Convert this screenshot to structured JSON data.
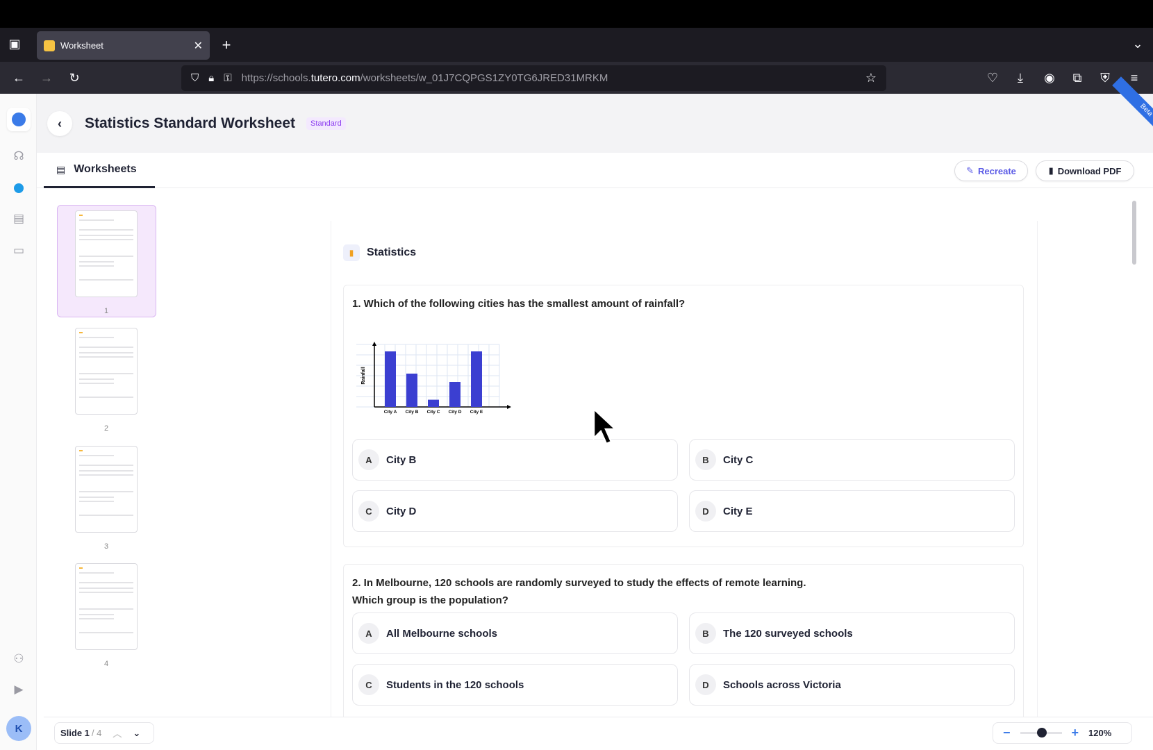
{
  "browser": {
    "tab_title": "Worksheet",
    "url_prefix": "https://schools.",
    "url_domain": "tutero.com",
    "url_path": "/worksheets/w_01J7CQPGS1ZY0TG6JRED31MRKM"
  },
  "header": {
    "title": "Statistics Standard Worksheet",
    "badge": "Standard",
    "ribbon": "Beta"
  },
  "tabs": {
    "worksheets": "Worksheets"
  },
  "toolbar": {
    "recreate": "Recreate",
    "download": "Download PDF"
  },
  "thumbnails": [
    "1",
    "2",
    "3",
    "4"
  ],
  "sidebar": {
    "avatar": "K"
  },
  "worksheet": {
    "section": "Statistics",
    "questions": [
      {
        "text": "1. Which of the following cities has the smallest amount of rainfall?",
        "options": [
          {
            "letter": "A",
            "label": "City B"
          },
          {
            "letter": "B",
            "label": "City C"
          },
          {
            "letter": "C",
            "label": "City D"
          },
          {
            "letter": "D",
            "label": "City E"
          }
        ]
      },
      {
        "text": "2. In Melbourne, 120 schools are randomly surveyed to study the effects of remote learning.",
        "text2": "Which group is the population?",
        "options": [
          {
            "letter": "A",
            "label": "All Melbourne schools"
          },
          {
            "letter": "B",
            "label": "The 120 surveyed schools"
          },
          {
            "letter": "C",
            "label": "Students in the 120 schools"
          },
          {
            "letter": "D",
            "label": "Schools across Victoria"
          }
        ]
      }
    ]
  },
  "chart_data": {
    "type": "bar",
    "categories": [
      "City A",
      "City B",
      "City C",
      "City D",
      "City E"
    ],
    "values": [
      10,
      6,
      1.3,
      4.5,
      10
    ],
    "title": "",
    "xlabel": "",
    "ylabel": "Rainfall",
    "ylim": [
      0,
      11
    ],
    "grid": true,
    "color": "#3b3fd1"
  },
  "footer": {
    "slide_label": "Slide 1",
    "slide_total": "/ 4",
    "zoom": "120%",
    "zoom_level_percent": 120
  }
}
